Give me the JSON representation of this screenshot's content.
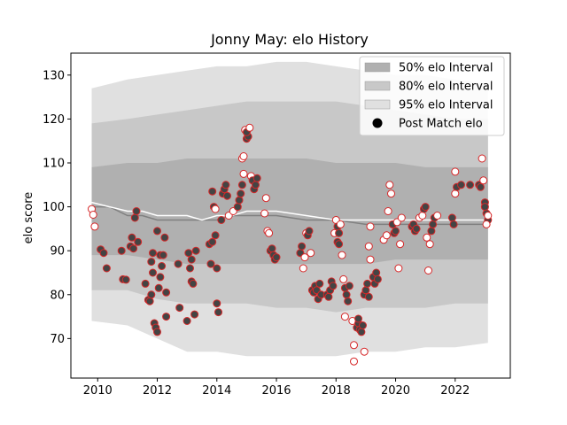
{
  "chart_data": {
    "type": "scatter",
    "title": "Jonny May: elo History",
    "xlabel": "",
    "ylabel": "elo score",
    "xlim": [
      2009.1,
      2023.85
    ],
    "ylim": [
      61,
      135
    ],
    "x_ticks": [
      "2010",
      "2012",
      "2014",
      "2016",
      "2018",
      "2020",
      "2022"
    ],
    "y_ticks": [
      "70",
      "80",
      "90",
      "100",
      "110",
      "120",
      "130"
    ],
    "grid": false,
    "legend_position": "top-right",
    "legend": [
      {
        "label": "50% elo Interval",
        "color": "#b0b0b0"
      },
      {
        "label": "80% elo Interval",
        "color": "#c8c8c8"
      },
      {
        "label": "95% elo Interval",
        "color": "#e0e0e0"
      },
      {
        "label": "Post Match elo",
        "color": "#000000"
      }
    ],
    "colors": {
      "band50": "#b0b0b0",
      "band80": "#c8c8c8",
      "band95": "#e0e0e0",
      "mean_line": "#808080",
      "median_line": "#ffffff",
      "point_edge": "#d62728",
      "point_fill_dark": "#444444",
      "point_fill_light": "#ffffff"
    },
    "bands": {
      "x": [
        2009.8,
        2011,
        2012,
        2013,
        2014,
        2015,
        2016,
        2017,
        2018,
        2019,
        2020,
        2021,
        2022,
        2023.1
      ],
      "p95_low": [
        74,
        73,
        70,
        67,
        67,
        66,
        66,
        66,
        66,
        67,
        67,
        68,
        68,
        69
      ],
      "p95_high": [
        127,
        129,
        130,
        131,
        132,
        132,
        133,
        133,
        132,
        131,
        130,
        130,
        129,
        128
      ],
      "p80_low": [
        81,
        81,
        79,
        78,
        78,
        78,
        77,
        77,
        76,
        77,
        77,
        77,
        78,
        78
      ],
      "p80_high": [
        119,
        120,
        121,
        122,
        123,
        124,
        124,
        124,
        124,
        123,
        122,
        121,
        120,
        120
      ],
      "p50_low": [
        89,
        89,
        88,
        87,
        87,
        87,
        87,
        87,
        87,
        87,
        88,
        88,
        88,
        88
      ],
      "p50_high": [
        109,
        110,
        110,
        111,
        111,
        111,
        111,
        111,
        110,
        110,
        110,
        109,
        109,
        109
      ]
    },
    "mean_line": {
      "x": [
        2009.8,
        2010.4,
        2011,
        2011.5,
        2012,
        2012.5,
        2013,
        2013.5,
        2014,
        2014.5,
        2015,
        2015.5,
        2016,
        2017,
        2018,
        2019,
        2020,
        2021,
        2022,
        2023.1
      ],
      "y": [
        100,
        100,
        98,
        98,
        97,
        97,
        97,
        97,
        97,
        98,
        98,
        98,
        98,
        97,
        97,
        96,
        96,
        96,
        96,
        96
      ]
    },
    "median_line": {
      "x": [
        2009.8,
        2010.4,
        2011,
        2011.5,
        2012,
        2012.5,
        2013,
        2013.5,
        2014,
        2014.5,
        2015,
        2015.5,
        2016,
        2017,
        2018,
        2019,
        2020,
        2021,
        2022,
        2023.1
      ],
      "y": [
        101,
        100,
        99,
        99,
        98,
        98,
        98,
        97,
        98,
        98,
        99,
        99,
        99,
        98,
        97,
        97,
        97,
        97,
        97,
        97
      ]
    },
    "points": [
      {
        "x": 2009.8,
        "y": 99.5,
        "dark": false
      },
      {
        "x": 2009.85,
        "y": 98.2,
        "dark": false
      },
      {
        "x": 2009.9,
        "y": 95.5,
        "dark": false
      },
      {
        "x": 2010.1,
        "y": 90.3,
        "dark": true
      },
      {
        "x": 2010.2,
        "y": 89.5,
        "dark": true
      },
      {
        "x": 2010.3,
        "y": 86.0,
        "dark": true
      },
      {
        "x": 2010.8,
        "y": 90.0,
        "dark": true
      },
      {
        "x": 2010.85,
        "y": 83.5,
        "dark": true
      },
      {
        "x": 2010.95,
        "y": 83.4,
        "dark": true
      },
      {
        "x": 2011.1,
        "y": 91.0,
        "dark": true
      },
      {
        "x": 2011.15,
        "y": 93.0,
        "dark": true
      },
      {
        "x": 2011.2,
        "y": 90.5,
        "dark": true
      },
      {
        "x": 2011.25,
        "y": 97.5,
        "dark": true
      },
      {
        "x": 2011.3,
        "y": 99.0,
        "dark": true
      },
      {
        "x": 2011.35,
        "y": 92.0,
        "dark": true
      },
      {
        "x": 2011.6,
        "y": 82.5,
        "dark": true
      },
      {
        "x": 2011.7,
        "y": 78.8,
        "dark": true
      },
      {
        "x": 2011.75,
        "y": 78.5,
        "dark": true
      },
      {
        "x": 2011.8,
        "y": 80.0,
        "dark": true
      },
      {
        "x": 2011.85,
        "y": 85.0,
        "dark": true
      },
      {
        "x": 2011.8,
        "y": 87.5,
        "dark": true
      },
      {
        "x": 2011.85,
        "y": 89.5,
        "dark": true
      },
      {
        "x": 2011.9,
        "y": 73.5,
        "dark": true
      },
      {
        "x": 2011.95,
        "y": 72.5,
        "dark": true
      },
      {
        "x": 2012.0,
        "y": 71.5,
        "dark": true
      },
      {
        "x": 2012.05,
        "y": 81.5,
        "dark": true
      },
      {
        "x": 2012.1,
        "y": 84.0,
        "dark": true
      },
      {
        "x": 2012.0,
        "y": 94.5,
        "dark": true
      },
      {
        "x": 2012.1,
        "y": 89.0,
        "dark": true
      },
      {
        "x": 2012.15,
        "y": 86.5,
        "dark": true
      },
      {
        "x": 2012.2,
        "y": 89.0,
        "dark": true
      },
      {
        "x": 2012.25,
        "y": 93.0,
        "dark": true
      },
      {
        "x": 2012.3,
        "y": 80.5,
        "dark": true
      },
      {
        "x": 2012.3,
        "y": 75.0,
        "dark": true
      },
      {
        "x": 2012.7,
        "y": 87.0,
        "dark": true
      },
      {
        "x": 2012.75,
        "y": 77.0,
        "dark": true
      },
      {
        "x": 2013.0,
        "y": 74.0,
        "dark": true
      },
      {
        "x": 2013.05,
        "y": 89.5,
        "dark": true
      },
      {
        "x": 2013.1,
        "y": 86.0,
        "dark": true
      },
      {
        "x": 2013.15,
        "y": 83.0,
        "dark": true
      },
      {
        "x": 2013.2,
        "y": 82.5,
        "dark": true
      },
      {
        "x": 2013.25,
        "y": 75.5,
        "dark": true
      },
      {
        "x": 2013.3,
        "y": 90.0,
        "dark": true
      },
      {
        "x": 2013.15,
        "y": 88.0,
        "dark": true
      },
      {
        "x": 2013.75,
        "y": 91.5,
        "dark": true
      },
      {
        "x": 2013.8,
        "y": 87.0,
        "dark": true
      },
      {
        "x": 2013.85,
        "y": 92.0,
        "dark": true
      },
      {
        "x": 2013.9,
        "y": 100.0,
        "dark": true
      },
      {
        "x": 2013.95,
        "y": 93.5,
        "dark": true
      },
      {
        "x": 2014.0,
        "y": 86.0,
        "dark": true
      },
      {
        "x": 2014.0,
        "y": 78.0,
        "dark": true
      },
      {
        "x": 2014.05,
        "y": 76.0,
        "dark": true
      },
      {
        "x": 2013.85,
        "y": 103.5,
        "dark": true
      },
      {
        "x": 2013.95,
        "y": 99.5,
        "dark": false
      },
      {
        "x": 2014.15,
        "y": 97.0,
        "dark": true
      },
      {
        "x": 2014.2,
        "y": 103.0,
        "dark": true
      },
      {
        "x": 2014.25,
        "y": 104.0,
        "dark": true
      },
      {
        "x": 2014.3,
        "y": 105.0,
        "dark": true
      },
      {
        "x": 2014.35,
        "y": 102.5,
        "dark": true
      },
      {
        "x": 2014.4,
        "y": 98.0,
        "dark": false
      },
      {
        "x": 2014.55,
        "y": 99.0,
        "dark": false
      },
      {
        "x": 2014.7,
        "y": 100.0,
        "dark": true
      },
      {
        "x": 2014.75,
        "y": 101.5,
        "dark": true
      },
      {
        "x": 2014.8,
        "y": 103.0,
        "dark": true
      },
      {
        "x": 2014.85,
        "y": 105.0,
        "dark": true
      },
      {
        "x": 2014.9,
        "y": 107.5,
        "dark": false
      },
      {
        "x": 2014.85,
        "y": 111.0,
        "dark": false
      },
      {
        "x": 2014.9,
        "y": 111.5,
        "dark": false
      },
      {
        "x": 2014.95,
        "y": 117.5,
        "dark": false
      },
      {
        "x": 2015.0,
        "y": 115.5,
        "dark": true
      },
      {
        "x": 2015.05,
        "y": 116.0,
        "dark": true
      },
      {
        "x": 2015.0,
        "y": 117.0,
        "dark": true
      },
      {
        "x": 2015.1,
        "y": 118.0,
        "dark": false
      },
      {
        "x": 2015.15,
        "y": 107.0,
        "dark": false
      },
      {
        "x": 2015.2,
        "y": 106.0,
        "dark": true
      },
      {
        "x": 2015.25,
        "y": 104.0,
        "dark": true
      },
      {
        "x": 2015.3,
        "y": 105.0,
        "dark": true
      },
      {
        "x": 2015.35,
        "y": 106.5,
        "dark": true
      },
      {
        "x": 2015.6,
        "y": 98.5,
        "dark": false
      },
      {
        "x": 2015.65,
        "y": 102.0,
        "dark": false
      },
      {
        "x": 2015.7,
        "y": 94.5,
        "dark": false
      },
      {
        "x": 2015.75,
        "y": 94.0,
        "dark": false
      },
      {
        "x": 2015.8,
        "y": 90.0,
        "dark": true
      },
      {
        "x": 2015.85,
        "y": 90.5,
        "dark": true
      },
      {
        "x": 2015.9,
        "y": 89.0,
        "dark": true
      },
      {
        "x": 2015.95,
        "y": 88.0,
        "dark": true
      },
      {
        "x": 2016.0,
        "y": 88.5,
        "dark": true
      },
      {
        "x": 2016.8,
        "y": 89.5,
        "dark": true
      },
      {
        "x": 2016.85,
        "y": 91.0,
        "dark": true
      },
      {
        "x": 2016.9,
        "y": 86.0,
        "dark": false
      },
      {
        "x": 2016.95,
        "y": 88.5,
        "dark": false
      },
      {
        "x": 2017.0,
        "y": 94.0,
        "dark": false
      },
      {
        "x": 2017.05,
        "y": 93.5,
        "dark": true
      },
      {
        "x": 2017.1,
        "y": 94.5,
        "dark": true
      },
      {
        "x": 2017.15,
        "y": 89.5,
        "dark": false
      },
      {
        "x": 2017.2,
        "y": 81.0,
        "dark": true
      },
      {
        "x": 2017.25,
        "y": 80.5,
        "dark": true
      },
      {
        "x": 2017.3,
        "y": 82.0,
        "dark": true
      },
      {
        "x": 2017.35,
        "y": 81.0,
        "dark": true
      },
      {
        "x": 2017.4,
        "y": 79.0,
        "dark": true
      },
      {
        "x": 2017.45,
        "y": 82.5,
        "dark": true
      },
      {
        "x": 2017.5,
        "y": 80.0,
        "dark": true
      },
      {
        "x": 2017.7,
        "y": 80.0,
        "dark": true
      },
      {
        "x": 2017.75,
        "y": 79.5,
        "dark": true
      },
      {
        "x": 2017.8,
        "y": 81.0,
        "dark": true
      },
      {
        "x": 2017.85,
        "y": 83.0,
        "dark": true
      },
      {
        "x": 2017.9,
        "y": 82.0,
        "dark": true
      },
      {
        "x": 2017.95,
        "y": 94.0,
        "dark": false
      },
      {
        "x": 2018.0,
        "y": 97.0,
        "dark": false
      },
      {
        "x": 2018.05,
        "y": 95.5,
        "dark": true
      },
      {
        "x": 2018.1,
        "y": 94.0,
        "dark": true
      },
      {
        "x": 2018.05,
        "y": 92.0,
        "dark": true
      },
      {
        "x": 2018.1,
        "y": 91.5,
        "dark": true
      },
      {
        "x": 2018.15,
        "y": 96.0,
        "dark": false
      },
      {
        "x": 2018.2,
        "y": 89.0,
        "dark": false
      },
      {
        "x": 2018.25,
        "y": 83.5,
        "dark": false
      },
      {
        "x": 2018.3,
        "y": 81.5,
        "dark": true
      },
      {
        "x": 2018.35,
        "y": 80.0,
        "dark": true
      },
      {
        "x": 2018.4,
        "y": 78.5,
        "dark": true
      },
      {
        "x": 2018.45,
        "y": 82.0,
        "dark": true
      },
      {
        "x": 2018.3,
        "y": 75.0,
        "dark": false
      },
      {
        "x": 2018.55,
        "y": 74.0,
        "dark": false
      },
      {
        "x": 2018.6,
        "y": 68.5,
        "dark": false
      },
      {
        "x": 2018.6,
        "y": 64.8,
        "dark": false
      },
      {
        "x": 2018.7,
        "y": 72.5,
        "dark": true
      },
      {
        "x": 2018.75,
        "y": 73.5,
        "dark": true
      },
      {
        "x": 2018.8,
        "y": 72.0,
        "dark": true
      },
      {
        "x": 2018.85,
        "y": 71.5,
        "dark": true
      },
      {
        "x": 2018.9,
        "y": 73.0,
        "dark": true
      },
      {
        "x": 2018.75,
        "y": 74.5,
        "dark": true
      },
      {
        "x": 2018.95,
        "y": 67.0,
        "dark": false
      },
      {
        "x": 2018.95,
        "y": 80.0,
        "dark": true
      },
      {
        "x": 2019.0,
        "y": 81.0,
        "dark": true
      },
      {
        "x": 2019.05,
        "y": 82.5,
        "dark": true
      },
      {
        "x": 2019.1,
        "y": 79.5,
        "dark": true
      },
      {
        "x": 2019.15,
        "y": 88.0,
        "dark": false
      },
      {
        "x": 2019.1,
        "y": 91.0,
        "dark": false
      },
      {
        "x": 2019.15,
        "y": 95.5,
        "dark": false
      },
      {
        "x": 2019.25,
        "y": 84.0,
        "dark": true
      },
      {
        "x": 2019.3,
        "y": 82.5,
        "dark": true
      },
      {
        "x": 2019.35,
        "y": 85.0,
        "dark": true
      },
      {
        "x": 2019.4,
        "y": 83.5,
        "dark": true
      },
      {
        "x": 2019.6,
        "y": 92.5,
        "dark": false
      },
      {
        "x": 2019.7,
        "y": 93.5,
        "dark": false
      },
      {
        "x": 2019.75,
        "y": 99.0,
        "dark": false
      },
      {
        "x": 2019.8,
        "y": 105.0,
        "dark": false
      },
      {
        "x": 2019.85,
        "y": 103.0,
        "dark": false
      },
      {
        "x": 2019.9,
        "y": 96.0,
        "dark": true
      },
      {
        "x": 2019.95,
        "y": 94.0,
        "dark": true
      },
      {
        "x": 2020.0,
        "y": 94.5,
        "dark": true
      },
      {
        "x": 2020.05,
        "y": 96.5,
        "dark": false
      },
      {
        "x": 2020.1,
        "y": 86.0,
        "dark": false
      },
      {
        "x": 2020.15,
        "y": 91.5,
        "dark": false
      },
      {
        "x": 2020.2,
        "y": 97.5,
        "dark": false
      },
      {
        "x": 2020.55,
        "y": 95.5,
        "dark": true
      },
      {
        "x": 2020.6,
        "y": 96.0,
        "dark": true
      },
      {
        "x": 2020.65,
        "y": 94.5,
        "dark": true
      },
      {
        "x": 2020.7,
        "y": 95.0,
        "dark": true
      },
      {
        "x": 2020.8,
        "y": 97.5,
        "dark": false
      },
      {
        "x": 2020.9,
        "y": 98.0,
        "dark": false
      },
      {
        "x": 2020.95,
        "y": 99.5,
        "dark": true
      },
      {
        "x": 2021.0,
        "y": 100.0,
        "dark": true
      },
      {
        "x": 2021.05,
        "y": 93.0,
        "dark": false
      },
      {
        "x": 2021.1,
        "y": 85.5,
        "dark": false
      },
      {
        "x": 2021.15,
        "y": 91.5,
        "dark": false
      },
      {
        "x": 2021.2,
        "y": 94.5,
        "dark": true
      },
      {
        "x": 2021.25,
        "y": 96.0,
        "dark": true
      },
      {
        "x": 2021.3,
        "y": 97.5,
        "dark": true
      },
      {
        "x": 2021.4,
        "y": 98.0,
        "dark": false
      },
      {
        "x": 2021.9,
        "y": 97.5,
        "dark": true
      },
      {
        "x": 2021.95,
        "y": 96.0,
        "dark": true
      },
      {
        "x": 2022.0,
        "y": 103.0,
        "dark": false
      },
      {
        "x": 2022.05,
        "y": 104.5,
        "dark": true
      },
      {
        "x": 2022.0,
        "y": 108.0,
        "dark": false
      },
      {
        "x": 2022.2,
        "y": 105.0,
        "dark": true
      },
      {
        "x": 2022.5,
        "y": 105.0,
        "dark": true
      },
      {
        "x": 2022.8,
        "y": 105.0,
        "dark": true
      },
      {
        "x": 2022.85,
        "y": 104.5,
        "dark": true
      },
      {
        "x": 2022.9,
        "y": 111.0,
        "dark": false
      },
      {
        "x": 2022.95,
        "y": 106.0,
        "dark": false
      },
      {
        "x": 2023.0,
        "y": 101.0,
        "dark": true
      },
      {
        "x": 2023.0,
        "y": 100.0,
        "dark": true
      },
      {
        "x": 2023.05,
        "y": 98.5,
        "dark": true
      },
      {
        "x": 2023.1,
        "y": 97.0,
        "dark": true
      },
      {
        "x": 2023.05,
        "y": 96.0,
        "dark": false
      },
      {
        "x": 2023.1,
        "y": 98.0,
        "dark": false
      }
    ]
  }
}
